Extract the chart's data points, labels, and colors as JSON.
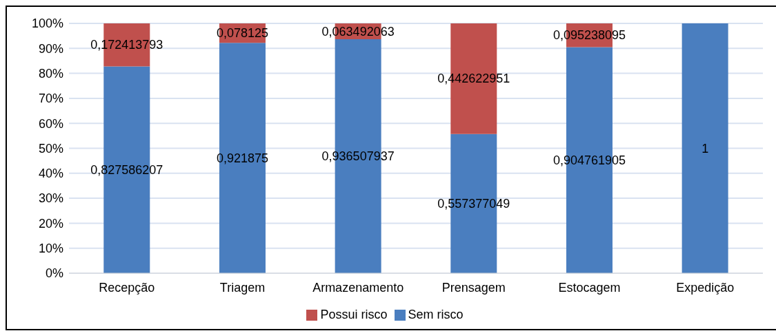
{
  "chart_data": {
    "type": "bar",
    "stacked": true,
    "categories": [
      "Recepção",
      "Triagem",
      "Armazenamento",
      "Prensagem",
      "Estocagem",
      "Expedição"
    ],
    "series": [
      {
        "name": "Sem risco",
        "color": "#4a7ebf",
        "values": [
          0.827586207,
          0.921875,
          0.936507937,
          0.557377049,
          0.904761905,
          1
        ],
        "value_labels": [
          "0,827586207",
          "0,921875",
          "0,936507937",
          "0,557377049",
          "0,904761905",
          "1"
        ]
      },
      {
        "name": "Possui risco",
        "color": "#c0504d",
        "values": [
          0.172413793,
          0.078125,
          0.063492063,
          0.442622951,
          0.095238095,
          0
        ],
        "value_labels": [
          "0,172413793",
          "0,078125",
          "0,063492063",
          "0,442622951",
          "0,095238095",
          null
        ]
      }
    ],
    "ylim": [
      0,
      1
    ],
    "yticks": [
      {
        "value": 0,
        "label": "0%"
      },
      {
        "value": 0.1,
        "label": "10%"
      },
      {
        "value": 0.2,
        "label": "20%"
      },
      {
        "value": 0.3,
        "label": "30%"
      },
      {
        "value": 0.4,
        "label": "40%"
      },
      {
        "value": 0.5,
        "label": "50%"
      },
      {
        "value": 0.6,
        "label": "60%"
      },
      {
        "value": 0.7,
        "label": "70%"
      },
      {
        "value": 0.8,
        "label": "80%"
      },
      {
        "value": 0.9,
        "label": "90%"
      },
      {
        "value": 1,
        "label": "100%"
      }
    ],
    "grid": "y",
    "legend": "bottom"
  }
}
